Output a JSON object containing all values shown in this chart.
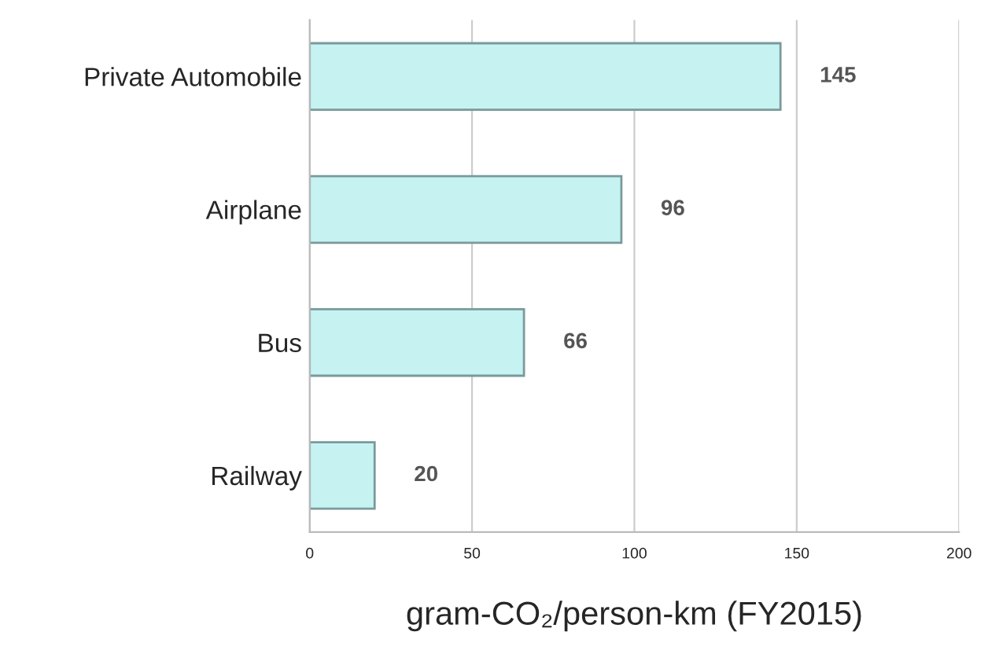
{
  "chart_data": {
    "type": "bar",
    "orientation": "horizontal",
    "categories": [
      "Private Automobile",
      "Airplane",
      "Bus",
      "Railway"
    ],
    "values": [
      145,
      96,
      66,
      20
    ],
    "color": "#c6f2f2",
    "xlabel": "gram-CO₂/person-km (FY2015)",
    "xlim": [
      0,
      200
    ],
    "xticks": [
      0,
      50,
      100,
      150,
      200
    ],
    "grid": "x",
    "data_labels": true
  }
}
